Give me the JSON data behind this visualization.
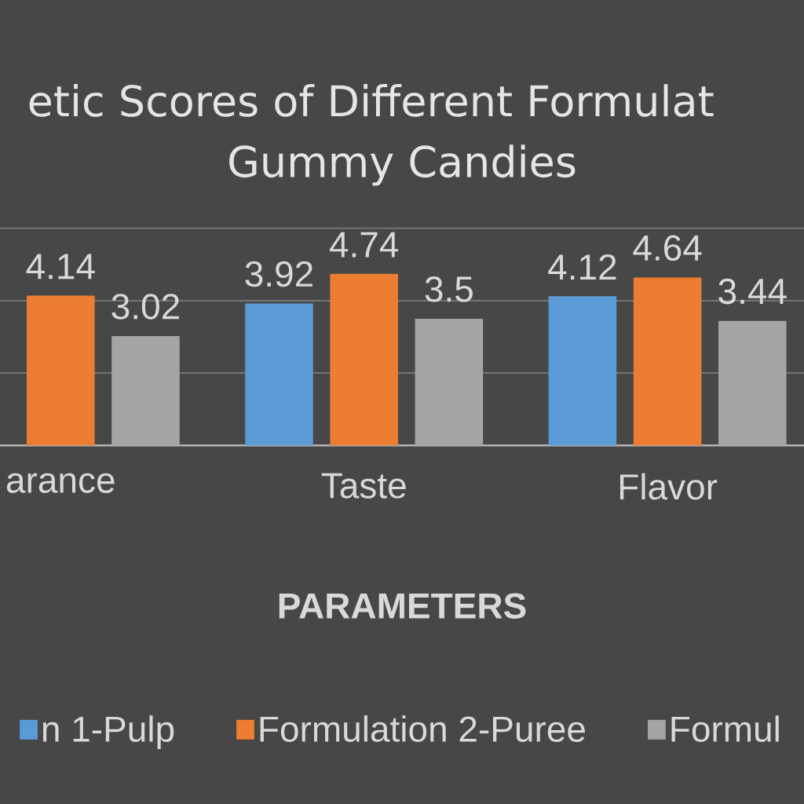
{
  "chart_data": {
    "type": "bar",
    "title": "etic  Scores of Different Formulat",
    "subtitle": "Gummy Candies",
    "xlabel": "PARAMETERS",
    "categories": [
      "arance",
      "Taste",
      "Flavor"
    ],
    "series": [
      {
        "name": "n 1-Pulp",
        "color": "#5b9bd5",
        "values": [
          null,
          3.92,
          4.12
        ]
      },
      {
        "name": "Formulation 2-Puree",
        "color": "#ed7d31",
        "values": [
          4.14,
          4.74,
          4.64
        ]
      },
      {
        "name": "Formul",
        "color": "#a5a5a5",
        "values": [
          3.02,
          3.5,
          3.44
        ]
      }
    ],
    "ylim": [
      0,
      6
    ],
    "yticks": [
      {
        "value": 0,
        "label": null
      },
      {
        "value": 2,
        "label": null
      },
      {
        "value": 4,
        "label": null
      },
      {
        "value": 6,
        "label": null
      }
    ],
    "data_labels": true,
    "tick_labels": "x",
    "grid": "y",
    "legend": "bottom"
  }
}
